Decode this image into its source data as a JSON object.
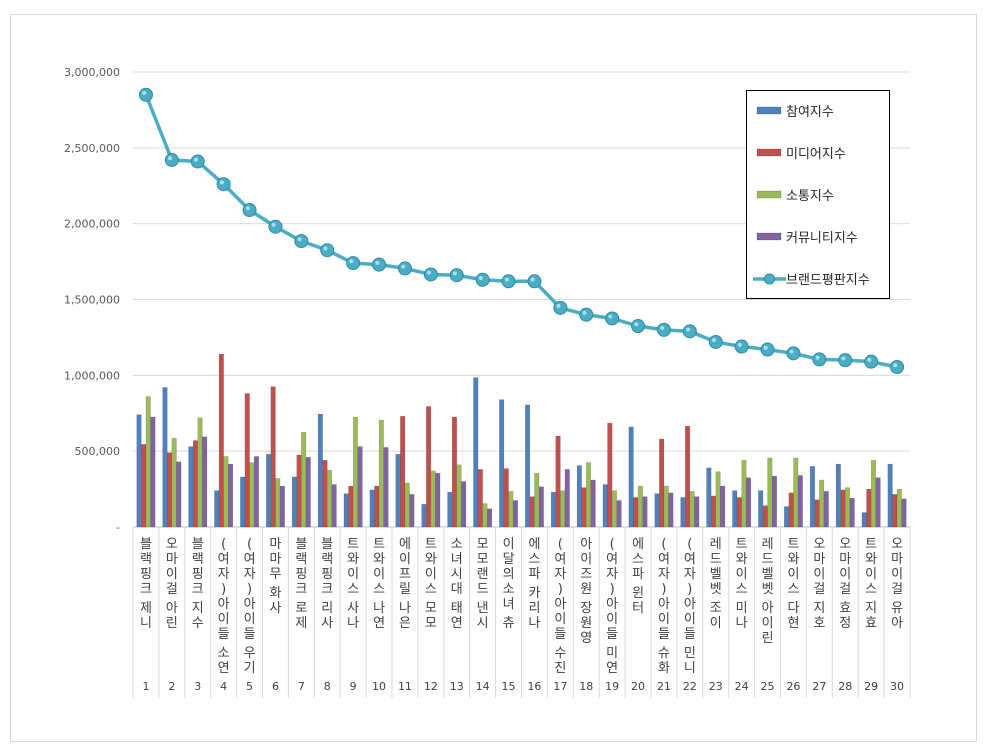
{
  "chart_data": {
    "type": "bar",
    "ylim": [
      0,
      3000000
    ],
    "y_ticks": [
      0,
      500000,
      1000000,
      1500000,
      2000000,
      2500000,
      3000000
    ],
    "y_tick_labels": [
      "-",
      "500,000",
      "1,000,000",
      "1,500,000",
      "2,000,000",
      "2,500,000",
      "3,000,000"
    ],
    "grid": true,
    "legend_position": "top-right",
    "categories": [
      "블랙핑크 제니",
      "오마이걸 아린",
      "블랙핑크 지수",
      "(여자)아이들 소연",
      "(여자)아이들 우기",
      "마마무 화사",
      "블랙핑크 로제",
      "블랙핑크 리사",
      "트와이스 사나",
      "트와이스 나연",
      "에이프릴 나은",
      "트와이스 모모",
      "소녀시대 태연",
      "모모랜드 낸시",
      "이달의소녀 츄",
      "에스파 카리나",
      "(여자)아이들 수진",
      "아이즈원 장원영",
      "(여자)아이들 미연",
      "에스파 윈터",
      "(여자)아이들 슈화",
      "(여자)아이들 민니",
      "레드벨벳 조이",
      "트와이스 미나",
      "레드벨벳 아이린",
      "트와이스 다현",
      "오마이걸 지호",
      "오마이걸 효정",
      "트와이스 지효",
      "오마이걸 유아"
    ],
    "ranks": [
      "1",
      "2",
      "3",
      "4",
      "5",
      "6",
      "7",
      "8",
      "9",
      "10",
      "11",
      "12",
      "13",
      "14",
      "15",
      "16",
      "17",
      "18",
      "19",
      "20",
      "21",
      "22",
      "23",
      "24",
      "25",
      "26",
      "27",
      "28",
      "29",
      "30"
    ],
    "series": [
      {
        "name": "참여지수",
        "kind": "bar",
        "color": "#4f81bd",
        "values": [
          740000,
          920000,
          530000,
          240000,
          330000,
          480000,
          330000,
          745000,
          220000,
          245000,
          480000,
          150000,
          230000,
          985000,
          840000,
          805000,
          230000,
          405000,
          280000,
          660000,
          220000,
          195000,
          390000,
          240000,
          240000,
          135000,
          400000,
          415000,
          95000,
          415000
        ]
      },
      {
        "name": "미디어지수",
        "kind": "bar",
        "color": "#c0504d",
        "values": [
          545000,
          490000,
          570000,
          1140000,
          880000,
          925000,
          475000,
          440000,
          270000,
          270000,
          730000,
          795000,
          725000,
          380000,
          385000,
          200000,
          600000,
          260000,
          685000,
          195000,
          580000,
          665000,
          205000,
          195000,
          140000,
          225000,
          180000,
          245000,
          250000,
          215000
        ]
      },
      {
        "name": "소통지수",
        "kind": "bar",
        "color": "#9bbb59",
        "values": [
          860000,
          585000,
          720000,
          465000,
          425000,
          320000,
          625000,
          375000,
          725000,
          705000,
          290000,
          370000,
          410000,
          155000,
          235000,
          355000,
          240000,
          425000,
          240000,
          270000,
          270000,
          235000,
          365000,
          440000,
          455000,
          455000,
          310000,
          260000,
          440000,
          250000
        ]
      },
      {
        "name": "커뮤니티지수",
        "kind": "bar",
        "color": "#8064a2",
        "values": [
          725000,
          430000,
          595000,
          415000,
          465000,
          270000,
          460000,
          280000,
          530000,
          525000,
          215000,
          355000,
          300000,
          120000,
          175000,
          265000,
          380000,
          310000,
          175000,
          200000,
          225000,
          200000,
          270000,
          325000,
          335000,
          340000,
          235000,
          190000,
          325000,
          185000
        ]
      },
      {
        "name": "브랜드평판지수",
        "kind": "line",
        "color": "#4bacc6",
        "values": [
          2850000,
          2420000,
          2410000,
          2260000,
          2090000,
          1980000,
          1885000,
          1825000,
          1740000,
          1730000,
          1705000,
          1665000,
          1660000,
          1630000,
          1620000,
          1620000,
          1445000,
          1400000,
          1375000,
          1325000,
          1300000,
          1290000,
          1220000,
          1190000,
          1170000,
          1145000,
          1105000,
          1100000,
          1090000,
          1055000
        ]
      }
    ]
  }
}
